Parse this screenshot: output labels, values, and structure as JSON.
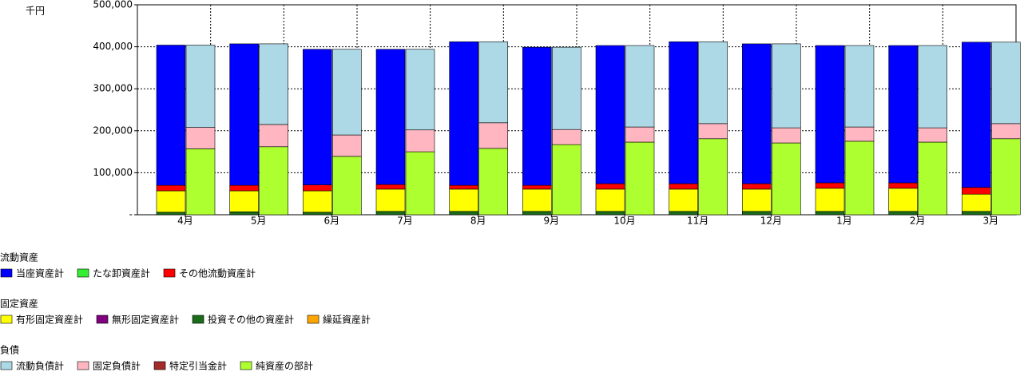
{
  "chart_data": {
    "type": "bar",
    "y_label": "千円",
    "categories": [
      "4月",
      "5月",
      "6月",
      "7月",
      "8月",
      "9月",
      "10月",
      "11月",
      "12月",
      "1月",
      "2月",
      "3月"
    ],
    "ylim": [
      0,
      500000
    ],
    "yticks": [
      {
        "value": 0,
        "label": "-"
      },
      {
        "value": 100000,
        "label": "100,000"
      },
      {
        "value": 200000,
        "label": "200,000"
      },
      {
        "value": 300000,
        "label": "300,000"
      },
      {
        "value": 400000,
        "label": "400,000"
      },
      {
        "value": 500000,
        "label": "500,000"
      }
    ],
    "grid": true,
    "series_groups": [
      {
        "name": "流動資産",
        "series": [
          {
            "name": "当座資産計",
            "color": "#0000ff",
            "values": [
              334000,
              337000,
              323000,
              322000,
              342000,
              329000,
              329000,
              338000,
              333000,
              327000,
              327000,
              346000
            ]
          },
          {
            "name": "たな卸資産計",
            "color": "#33ee33",
            "values": [
              0,
              0,
              0,
              0,
              0,
              0,
              0,
              0,
              0,
              0,
              0,
              0
            ]
          },
          {
            "name": "その他流動資産計",
            "color": "#ff0000",
            "values": [
              13000,
              13000,
              14000,
              11000,
              9000,
              9000,
              13000,
              13000,
              13000,
              13000,
              13000,
              16000
            ]
          }
        ]
      },
      {
        "name": "固定資産",
        "series": [
          {
            "name": "有形固定資産計",
            "color": "#ffff00",
            "values": [
              51000,
              50000,
              51000,
              53000,
              53000,
              53000,
              53000,
              53000,
              53000,
              55000,
              55000,
              41000
            ]
          },
          {
            "name": "無形固定資産計",
            "color": "#800080",
            "values": [
              0,
              0,
              0,
              0,
              0,
              0,
              0,
              0,
              0,
              0,
              0,
              0
            ]
          },
          {
            "name": "投資その他の資産計",
            "color": "#1a6b1a",
            "values": [
              6000,
              7000,
              6000,
              8000,
              8000,
              8000,
              8000,
              8000,
              8000,
              8000,
              8000,
              8000
            ]
          },
          {
            "name": "繰延資産計",
            "color": "#ffa500",
            "values": [
              0,
              0,
              0,
              0,
              0,
              0,
              0,
              0,
              0,
              0,
              0,
              0
            ]
          }
        ]
      },
      {
        "name": "負債",
        "series": [
          {
            "name": "流動負債計",
            "color": "#add8e6",
            "values": [
              196000,
              192000,
              204000,
              192000,
              193000,
              196000,
              194000,
              195000,
              200000,
              194000,
              196000,
              194000
            ]
          },
          {
            "name": "固定負債計",
            "color": "#ffb6c1",
            "values": [
              51000,
              53000,
              51000,
              52000,
              61000,
              36000,
              36000,
              36000,
              36000,
              34000,
              34000,
              36000
            ]
          },
          {
            "name": "特定引当金計",
            "color": "#a52a2a",
            "values": [
              0,
              0,
              0,
              0,
              0,
              0,
              0,
              0,
              0,
              0,
              0,
              0
            ]
          },
          {
            "name": "純資産の部計",
            "color": "#adff2f",
            "values": [
              157000,
              162000,
              139000,
              150000,
              158000,
              167000,
              173000,
              181000,
              171000,
              175000,
              173000,
              181000
            ]
          }
        ]
      }
    ]
  }
}
